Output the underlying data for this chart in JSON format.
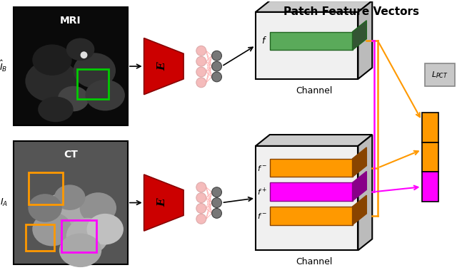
{
  "title": "Patch Feature Vectors",
  "bg_color": "#ffffff",
  "mri_label": "MRI",
  "ct_label": "CT",
  "anchor_label": "$\\hat{I}_B$",
  "source_label": "$I_A$",
  "encoder_label": "E",
  "channel_label": "Channel",
  "loss_label": "$L_{PCT}$",
  "f_label": "$f$",
  "f_pos_label": "$f^+$",
  "f_neg1_label": "$f^-$",
  "f_neg2_label": "$f^-$",
  "green_color": "#5aaa5a",
  "orange_color": "#ff9900",
  "magenta_color": "#ff00ff",
  "red_color": "#cc0000",
  "gray_color": "#aaaaaa",
  "box_face": "#f0f0f0",
  "box_top": "#cccccc",
  "box_right": "#bbbbbb"
}
